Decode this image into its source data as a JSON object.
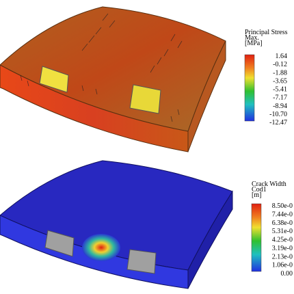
{
  "panels": [
    {
      "legend": {
        "title": [
          "Principal Stress",
          "Max.",
          "[MPa]"
        ],
        "labels": [
          "1.64",
          "-0.12",
          "-1.88",
          "-3.65",
          "-5.41",
          "-7.17",
          "-8.94",
          "-10.70",
          "-12.47"
        ]
      }
    },
    {
      "legend": {
        "title": [
          "Crack Width",
          "Cod1",
          "[m]"
        ],
        "labels": [
          "8.50e-0",
          "7.44e-0",
          "6.38e-0",
          "5.31e-0",
          "4.25e-0",
          "3.19e-0",
          "2.13e-0",
          "1.06e-0",
          "0.00"
        ]
      }
    }
  ]
}
